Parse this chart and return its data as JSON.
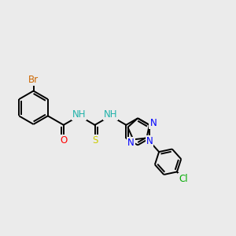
{
  "bg_color": "#ebebeb",
  "atom_colors": {
    "C": "#000000",
    "H": "#20b2aa",
    "N": "#0000ff",
    "O": "#ff0000",
    "S": "#cccc00",
    "Br": "#cc6600",
    "Cl": "#00aa00"
  },
  "bond_color": "#000000",
  "bond_width": 1.4,
  "font_size": 8.5,
  "fig_width": 3.0,
  "fig_height": 3.0,
  "dpi": 100,
  "xlim": [
    0.0,
    10.0
  ],
  "ylim": [
    -1.5,
    5.0
  ]
}
